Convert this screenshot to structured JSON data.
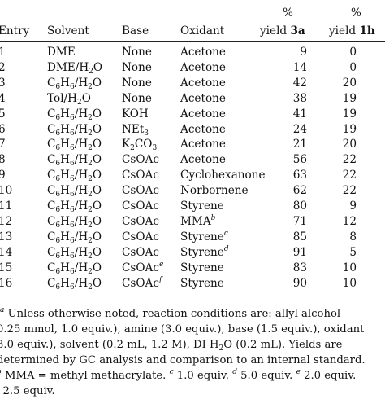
{
  "headers": {
    "entry": "Entry",
    "solvent": "Solvent",
    "base": "Base",
    "oxidant": "Oxidant",
    "pct1": "%",
    "yield1_prefix": "yield ",
    "yield1_bold": "3a",
    "pct2": "%",
    "yield2_prefix": "yield ",
    "yield2_bold": "1h"
  },
  "rows": [
    {
      "entry": "1",
      "solvent": [
        [
          "DME",
          ""
        ]
      ],
      "base": [
        [
          "None",
          ""
        ]
      ],
      "oxidant": [
        [
          "Acetone",
          ""
        ]
      ],
      "yield3a": "9",
      "yield1h": "0"
    },
    {
      "entry": "2",
      "solvent": [
        [
          "DME/H",
          ""
        ],
        [
          "2",
          "sub"
        ],
        [
          "O",
          ""
        ]
      ],
      "base": [
        [
          "None",
          ""
        ]
      ],
      "oxidant": [
        [
          "Acetone",
          ""
        ]
      ],
      "yield3a": "14",
      "yield1h": "0"
    },
    {
      "entry": "3",
      "solvent": [
        [
          "C",
          ""
        ],
        [
          "6",
          "sub"
        ],
        [
          "H",
          ""
        ],
        [
          "6",
          "sub"
        ],
        [
          "/H",
          ""
        ],
        [
          "2",
          "sub"
        ],
        [
          "O",
          ""
        ]
      ],
      "base": [
        [
          "None",
          ""
        ]
      ],
      "oxidant": [
        [
          "Acetone",
          ""
        ]
      ],
      "yield3a": "42",
      "yield1h": "20"
    },
    {
      "entry": "4",
      "solvent": [
        [
          "Tol/H",
          ""
        ],
        [
          "2",
          "sub"
        ],
        [
          "O",
          ""
        ]
      ],
      "base": [
        [
          "None",
          ""
        ]
      ],
      "oxidant": [
        [
          "Acetone",
          ""
        ]
      ],
      "yield3a": "38",
      "yield1h": "19"
    },
    {
      "entry": "5",
      "solvent": [
        [
          "C",
          ""
        ],
        [
          "6",
          "sub"
        ],
        [
          "H",
          ""
        ],
        [
          "6",
          "sub"
        ],
        [
          "/H",
          ""
        ],
        [
          "2",
          "sub"
        ],
        [
          "O",
          ""
        ]
      ],
      "base": [
        [
          "KOH",
          ""
        ]
      ],
      "oxidant": [
        [
          "Acetone",
          ""
        ]
      ],
      "yield3a": "41",
      "yield1h": "19"
    },
    {
      "entry": "6",
      "solvent": [
        [
          "C",
          ""
        ],
        [
          "6",
          "sub"
        ],
        [
          "H",
          ""
        ],
        [
          "6",
          "sub"
        ],
        [
          "/H",
          ""
        ],
        [
          "2",
          "sub"
        ],
        [
          "O",
          ""
        ]
      ],
      "base": [
        [
          "NEt",
          ""
        ],
        [
          "3",
          "sub"
        ]
      ],
      "oxidant": [
        [
          "Acetone",
          ""
        ]
      ],
      "yield3a": "24",
      "yield1h": "19"
    },
    {
      "entry": "7",
      "solvent": [
        [
          "C",
          ""
        ],
        [
          "6",
          "sub"
        ],
        [
          "H",
          ""
        ],
        [
          "6",
          "sub"
        ],
        [
          "/H",
          ""
        ],
        [
          "2",
          "sub"
        ],
        [
          "O",
          ""
        ]
      ],
      "base": [
        [
          "K",
          ""
        ],
        [
          "2",
          "sub"
        ],
        [
          "CO",
          ""
        ],
        [
          "3",
          "sub"
        ]
      ],
      "oxidant": [
        [
          "Acetone",
          ""
        ]
      ],
      "yield3a": "21",
      "yield1h": "20"
    },
    {
      "entry": "8",
      "solvent": [
        [
          "C",
          ""
        ],
        [
          "6",
          "sub"
        ],
        [
          "H",
          ""
        ],
        [
          "6",
          "sub"
        ],
        [
          "/H",
          ""
        ],
        [
          "2",
          "sub"
        ],
        [
          "O",
          ""
        ]
      ],
      "base": [
        [
          "CsOAc",
          ""
        ]
      ],
      "oxidant": [
        [
          "Acetone",
          ""
        ]
      ],
      "yield3a": "56",
      "yield1h": "22"
    },
    {
      "entry": "9",
      "solvent": [
        [
          "C",
          ""
        ],
        [
          "6",
          "sub"
        ],
        [
          "H",
          ""
        ],
        [
          "6",
          "sub"
        ],
        [
          "/H",
          ""
        ],
        [
          "2",
          "sub"
        ],
        [
          "O",
          ""
        ]
      ],
      "base": [
        [
          "CsOAc",
          ""
        ]
      ],
      "oxidant": [
        [
          "Cyclohexanone",
          ""
        ]
      ],
      "yield3a": "63",
      "yield1h": "22"
    },
    {
      "entry": "10",
      "solvent": [
        [
          "C",
          ""
        ],
        [
          "6",
          "sub"
        ],
        [
          "H",
          ""
        ],
        [
          "6",
          "sub"
        ],
        [
          "/H",
          ""
        ],
        [
          "2",
          "sub"
        ],
        [
          "O",
          ""
        ]
      ],
      "base": [
        [
          "CsOAc",
          ""
        ]
      ],
      "oxidant": [
        [
          "Norbornene",
          ""
        ]
      ],
      "yield3a": "62",
      "yield1h": "22"
    },
    {
      "entry": "11",
      "solvent": [
        [
          "C",
          ""
        ],
        [
          "6",
          "sub"
        ],
        [
          "H",
          ""
        ],
        [
          "6",
          "sub"
        ],
        [
          "/H",
          ""
        ],
        [
          "2",
          "sub"
        ],
        [
          "O",
          ""
        ]
      ],
      "base": [
        [
          "CsOAc",
          ""
        ]
      ],
      "oxidant": [
        [
          "Styrene",
          ""
        ]
      ],
      "yield3a": "80",
      "yield1h": "9"
    },
    {
      "entry": "12",
      "solvent": [
        [
          "C",
          ""
        ],
        [
          "6",
          "sub"
        ],
        [
          "H",
          ""
        ],
        [
          "6",
          "sub"
        ],
        [
          "/H",
          ""
        ],
        [
          "2",
          "sub"
        ],
        [
          "O",
          ""
        ]
      ],
      "base": [
        [
          "CsOAc",
          ""
        ]
      ],
      "oxidant": [
        [
          "MMA",
          ""
        ],
        [
          "b",
          "sup"
        ]
      ],
      "yield3a": "71",
      "yield1h": "12"
    },
    {
      "entry": "13",
      "solvent": [
        [
          "C",
          ""
        ],
        [
          "6",
          "sub"
        ],
        [
          "H",
          ""
        ],
        [
          "6",
          "sub"
        ],
        [
          "/H",
          ""
        ],
        [
          "2",
          "sub"
        ],
        [
          "O",
          ""
        ]
      ],
      "base": [
        [
          "CsOAc",
          ""
        ]
      ],
      "oxidant": [
        [
          "Styrene",
          ""
        ],
        [
          "c",
          "sup"
        ]
      ],
      "yield3a": "85",
      "yield1h": "8"
    },
    {
      "entry": "14",
      "solvent": [
        [
          "C",
          ""
        ],
        [
          "6",
          "sub"
        ],
        [
          "H",
          ""
        ],
        [
          "6",
          "sub"
        ],
        [
          "/H",
          ""
        ],
        [
          "2",
          "sub"
        ],
        [
          "O",
          ""
        ]
      ],
      "base": [
        [
          "CsOAc",
          ""
        ]
      ],
      "oxidant": [
        [
          "Styrene",
          ""
        ],
        [
          "d",
          "sup"
        ]
      ],
      "yield3a": "91",
      "yield1h": "5"
    },
    {
      "entry": "15",
      "solvent": [
        [
          "C",
          ""
        ],
        [
          "6",
          "sub"
        ],
        [
          "H",
          ""
        ],
        [
          "6",
          "sub"
        ],
        [
          "/H",
          ""
        ],
        [
          "2",
          "sub"
        ],
        [
          "O",
          ""
        ]
      ],
      "base": [
        [
          "CsOAc",
          ""
        ],
        [
          "e",
          "sup"
        ]
      ],
      "oxidant": [
        [
          "Styrene",
          ""
        ]
      ],
      "yield3a": "83",
      "yield1h": "10"
    },
    {
      "entry": "16",
      "solvent": [
        [
          "C",
          ""
        ],
        [
          "6",
          "sub"
        ],
        [
          "H",
          ""
        ],
        [
          "6",
          "sub"
        ],
        [
          "/H",
          ""
        ],
        [
          "2",
          "sub"
        ],
        [
          "O",
          ""
        ]
      ],
      "base": [
        [
          "CsOAc",
          ""
        ],
        [
          "f",
          "sup"
        ]
      ],
      "oxidant": [
        [
          "Styrene",
          ""
        ]
      ],
      "yield3a": "90",
      "yield1h": "10"
    }
  ],
  "footnote": {
    "lines": [
      [
        [
          "a",
          "sup"
        ],
        [
          " Unless otherwise noted, reaction conditions are: allyl alcohol",
          ""
        ]
      ],
      [
        [
          "0.25 mmol, 1.0 equiv.), amine (3.0 equiv.), base (1.5 equiv.), oxidant",
          ""
        ]
      ],
      [
        [
          "3.0 equiv.), solvent (0.2 mL, 1.2 M), DI H",
          ""
        ],
        [
          "2",
          "sub"
        ],
        [
          "O (0.2 mL). Yields are",
          ""
        ]
      ],
      [
        [
          "determined by GC analysis and comparison to an internal standard.",
          ""
        ]
      ],
      [
        [
          "b",
          "sup"
        ],
        [
          " MMA = methyl methacrylate. ",
          ""
        ],
        [
          "c",
          "sup"
        ],
        [
          " 1.0 equiv. ",
          ""
        ],
        [
          "d",
          "sup"
        ],
        [
          " 5.0 equiv. ",
          ""
        ],
        [
          "e",
          "sup"
        ],
        [
          " 2.0 equiv.",
          ""
        ]
      ],
      [
        [
          "f",
          "sup"
        ],
        [
          " 2.5 equiv.",
          ""
        ]
      ]
    ]
  }
}
